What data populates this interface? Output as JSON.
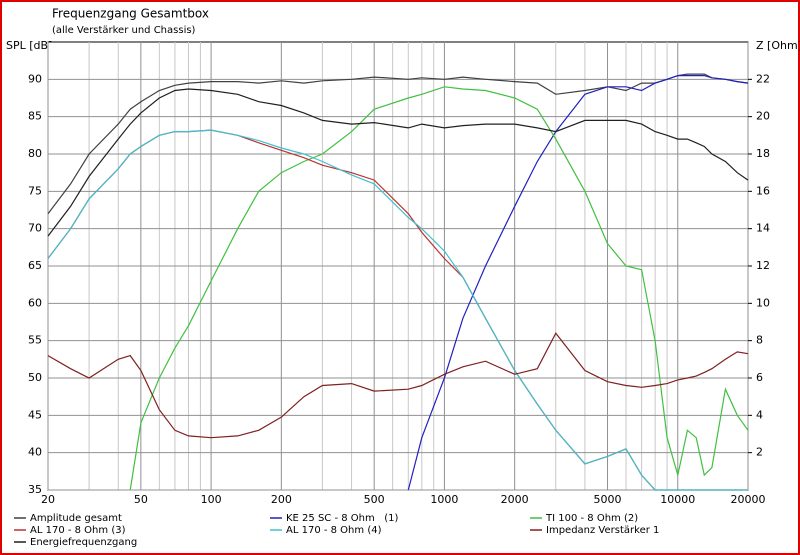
{
  "chart_data": {
    "type": "line",
    "title": "Frequenzgang Gesamtbox",
    "subtitle": "(alle Verstärker und Chassis)",
    "y_label": "SPL [dB]",
    "y2_label": "Z [Ohm]",
    "log_x": true,
    "grid": true,
    "x": [
      20,
      25,
      30,
      40,
      45,
      50,
      60,
      70,
      80,
      100,
      130,
      160,
      200,
      250,
      300,
      400,
      500,
      700,
      800,
      1000,
      1200,
      1500,
      2000,
      2500,
      3000,
      4000,
      5000,
      6000,
      7000,
      8000,
      9000,
      10000,
      11000,
      12000,
      13000,
      14000,
      16000,
      18000,
      20000
    ],
    "xlim": [
      20,
      20000
    ],
    "xticks": [
      20,
      50,
      100,
      200,
      500,
      1000,
      2000,
      5000,
      10000,
      20000
    ],
    "xminorticks": [
      30,
      40,
      60,
      70,
      80,
      90,
      300,
      400,
      600,
      700,
      800,
      900,
      3000,
      4000,
      6000,
      7000,
      8000,
      9000
    ],
    "ylim": [
      35,
      95
    ],
    "yticks": [
      35,
      40,
      45,
      50,
      55,
      60,
      65,
      70,
      75,
      80,
      85,
      90
    ],
    "y2lim": [
      0,
      24
    ],
    "y2ticks": [
      2,
      4,
      6,
      8,
      10,
      12,
      14,
      16,
      18,
      20,
      22
    ],
    "series": [
      {
        "name": "Amplitude gesamt",
        "color": "#404040",
        "values": [
          72,
          76,
          80,
          84,
          86,
          87,
          88.5,
          89.2,
          89.5,
          89.7,
          89.7,
          89.5,
          89.8,
          89.5,
          89.8,
          90,
          90.3,
          90,
          90.2,
          90,
          90.3,
          90,
          89.7,
          89.5,
          88,
          88.5,
          89,
          88.5,
          89.5,
          89.5,
          90,
          90.5,
          90.7,
          90.7,
          90.7,
          90.2,
          90,
          89.7,
          89.5
        ]
      },
      {
        "name": "KE 25 SC - 8 Ohm   (1)",
        "color": "#2020c0",
        "values": [
          null,
          null,
          null,
          null,
          null,
          null,
          null,
          null,
          null,
          null,
          null,
          null,
          null,
          null,
          null,
          null,
          null,
          35,
          42,
          50,
          58,
          65,
          73,
          79,
          83,
          88,
          89,
          89,
          88.5,
          89.5,
          90,
          90.5,
          90.5,
          90.5,
          90.5,
          90.2,
          90,
          89.7,
          89.5
        ]
      },
      {
        "name": "TI 100 - 8 Ohm (2)",
        "color": "#40c040",
        "values": [
          null,
          null,
          null,
          null,
          35,
          44,
          50,
          54,
          57,
          63,
          70,
          75,
          77.5,
          79,
          80,
          83,
          86,
          87.5,
          88,
          89,
          88.7,
          88.5,
          87.5,
          86,
          82,
          75,
          68,
          65,
          64.5,
          55,
          42,
          37,
          43,
          42,
          37,
          38,
          48.5,
          45,
          43
        ]
      },
      {
        "name": "AL 170 - 8 Ohm (3)",
        "color": "#c03030",
        "values": [
          66,
          70,
          74,
          78,
          80,
          81,
          82.5,
          83,
          83,
          83.2,
          82.5,
          81.5,
          80.5,
          79.5,
          78.5,
          77.5,
          76.5,
          72,
          69.5,
          66,
          63.5,
          58,
          51,
          46.5,
          43,
          38.5,
          39.5,
          40.5,
          37,
          35,
          35,
          35,
          35,
          35,
          35,
          35,
          35,
          35,
          35
        ]
      },
      {
        "name": "AL 170 - 8 Ohm (4)",
        "color": "#40c0d0",
        "values": [
          66,
          70,
          74,
          78,
          80,
          81,
          82.5,
          83,
          83,
          83.2,
          82.5,
          81.8,
          80.8,
          80,
          79,
          77.2,
          76,
          71.5,
          70,
          67,
          63.5,
          58,
          51,
          46.5,
          43,
          38.5,
          39.5,
          40.5,
          37,
          35,
          35,
          35,
          35,
          35,
          35,
          35,
          35,
          35,
          35
        ]
      },
      {
        "name": "Impedanz Verstärker 1",
        "color": "#802020",
        "axis": "y2",
        "values": [
          7.2,
          6.5,
          6,
          7,
          7.2,
          6.4,
          4.3,
          3.2,
          2.9,
          2.8,
          2.9,
          3.2,
          3.9,
          5,
          5.6,
          5.7,
          5.3,
          5.4,
          5.6,
          6.2,
          6.6,
          6.9,
          6.2,
          6.5,
          8.4,
          6.4,
          5.8,
          5.6,
          5.5,
          5.6,
          5.7,
          5.9,
          6,
          6.1,
          6.3,
          6.5,
          7,
          7.4,
          7.3
        ]
      },
      {
        "name": "Energiefrequenzgang",
        "color": "#202020",
        "values": [
          69,
          73,
          77,
          82,
          84,
          85.5,
          87.5,
          88.5,
          88.7,
          88.5,
          88,
          87,
          86.5,
          85.5,
          84.5,
          84,
          84.2,
          83.5,
          84,
          83.5,
          83.8,
          84,
          84,
          83.5,
          83,
          84.5,
          84.5,
          84.5,
          84,
          83,
          82.5,
          82,
          82,
          81.5,
          81,
          80,
          79,
          77.5,
          76.5
        ]
      }
    ]
  }
}
